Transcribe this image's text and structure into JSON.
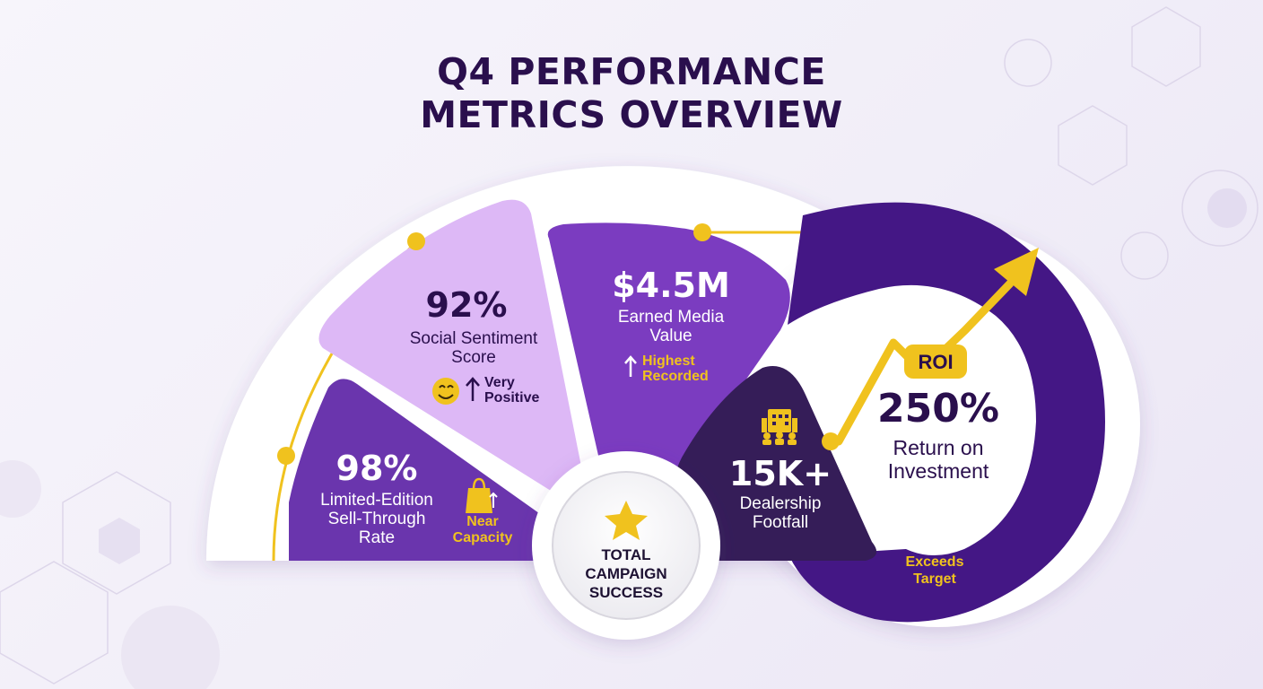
{
  "title": {
    "line1": "Q4 PERFORMANCE",
    "line2": "METRICS OVERVIEW"
  },
  "center": {
    "line1": "TOTAL",
    "line2": "CAMPAIGN",
    "line3": "SUCCESS"
  },
  "metrics": {
    "sell_through": {
      "value": "98%",
      "label_line1": "Limited-Edition",
      "label_line2": "Sell-Through",
      "label_line3": "Rate",
      "note_line1": "Near",
      "note_line2": "Capacity"
    },
    "sentiment": {
      "value": "92%",
      "label_line1": "Social Sentiment",
      "label_line2": "Score",
      "note_line1": "Very",
      "note_line2": "Positive"
    },
    "media_value": {
      "value": "$4.5M",
      "label_line1": "Earned Media",
      "label_line2": "Value",
      "note_line1": "Highest",
      "note_line2": "Recorded"
    },
    "footfall": {
      "value": "15K+",
      "label_line1": "Dealership",
      "label_line2": "Footfall"
    },
    "roi": {
      "tag": "ROI",
      "value": "250%",
      "label_line1": "Return on",
      "label_line2": "Investment",
      "note_line1": "Exceeds",
      "note_line2": "Target"
    }
  },
  "colors": {
    "title": "#2a0f4d",
    "light_purple": "#ddb8f6",
    "mid_purple": "#6a35ad",
    "bright_purple": "#7b3cc0",
    "dark_purple": "#351d58",
    "ring_purple": "#441785",
    "gold": "#f0c21e"
  }
}
